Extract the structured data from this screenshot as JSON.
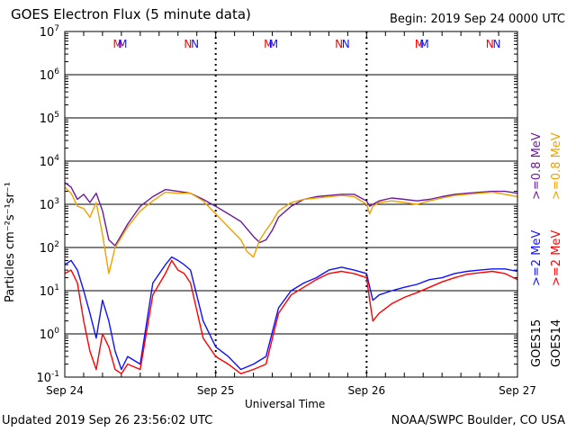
{
  "header": {
    "title": "GOES Electron Flux (5 minute data)",
    "begin": "Begin: 2019 Sep 24 0000 UTC"
  },
  "footer": {
    "updated": "Updated 2019 Sep 26 23:56:02 UTC",
    "credit": "NOAA/SWPC Boulder, CO USA"
  },
  "colors": {
    "goes15_2mev": "#1010ff",
    "goes14_2mev": "#ff0000",
    "goes15_08mev": "#6a1b9a",
    "goes14_08mev": "#f0a000",
    "threshold": "#000000"
  },
  "chart_data": {
    "type": "line",
    "ylabel": "Particles cm⁻²s⁻¹sr⁻¹",
    "xlabel": "Universal Time",
    "yscale": "log",
    "ylim": [
      0.1,
      10000000
    ],
    "y_ticks": [
      {
        "value": 0.1,
        "base": "10",
        "exp": "-1"
      },
      {
        "value": 1,
        "base": "10",
        "exp": "0"
      },
      {
        "value": 10,
        "base": "10",
        "exp": "1"
      },
      {
        "value": 100,
        "base": "10",
        "exp": "2"
      },
      {
        "value": 1000,
        "base": "10",
        "exp": "3"
      },
      {
        "value": 10000,
        "base": "10",
        "exp": "4"
      },
      {
        "value": 100000,
        "base": "10",
        "exp": "5"
      },
      {
        "value": 1000000,
        "base": "10",
        "exp": "6"
      },
      {
        "value": 10000000,
        "base": "10",
        "exp": "7"
      }
    ],
    "x_ticks": [
      "Sep 24",
      "Sep 25",
      "Sep 26",
      "Sep 27"
    ],
    "xlim_hours": [
      0,
      72
    ],
    "threshold": 1000,
    "markers": [
      {
        "label": "M",
        "color": "#ff0000",
        "hour": 8.4
      },
      {
        "label": "M",
        "color": "#1010ff",
        "hour": 9.2
      },
      {
        "label": "N",
        "color": "#ff0000",
        "hour": 19.6
      },
      {
        "label": "N",
        "color": "#1010ff",
        "hour": 20.7
      },
      {
        "label": "M",
        "color": "#ff0000",
        "hour": 32.4
      },
      {
        "label": "M",
        "color": "#1010ff",
        "hour": 33.2
      },
      {
        "label": "N",
        "color": "#ff0000",
        "hour": 43.6
      },
      {
        "label": "N",
        "color": "#1010ff",
        "hour": 44.7
      },
      {
        "label": "M",
        "color": "#ff0000",
        "hour": 56.4
      },
      {
        "label": "M",
        "color": "#1010ff",
        "hour": 57.2
      },
      {
        "label": "N",
        "color": "#ff0000",
        "hour": 67.6
      },
      {
        "label": "N",
        "color": "#1010ff",
        "hour": 68.7
      }
    ],
    "legend": [
      {
        "text": ">=0.8 MeV",
        "color": "#6a1b9a"
      },
      {
        "text": ">=0.8 MeV",
        "color": "#f0a000"
      },
      {
        "text": ">=2 MeV",
        "color": "#1010ff"
      },
      {
        "text": ">=2 MeV",
        "color": "#ff0000"
      },
      {
        "text": "GOES15",
        "color": "#000000"
      },
      {
        "text": "GOES14",
        "color": "#000000"
      }
    ],
    "series": [
      {
        "name": "GOES15 >=0.8 MeV",
        "color": "#6a1b9a",
        "x": [
          0,
          1,
          2,
          3,
          4,
          5,
          6,
          7,
          8,
          10,
          12,
          14,
          16,
          18,
          20,
          22,
          24,
          26,
          28,
          30,
          31,
          32,
          33,
          34,
          36,
          38,
          40,
          42,
          44,
          46,
          48,
          48.5,
          49,
          50,
          52,
          54,
          56,
          58,
          60,
          62,
          64,
          66,
          68,
          70,
          72
        ],
        "y": [
          3200,
          2500,
          1300,
          1700,
          1100,
          1800,
          700,
          150,
          110,
          350,
          900,
          1500,
          2200,
          2000,
          1800,
          1300,
          900,
          600,
          400,
          180,
          130,
          150,
          250,
          500,
          900,
          1300,
          1500,
          1600,
          1700,
          1700,
          1200,
          900,
          1000,
          1200,
          1400,
          1300,
          1200,
          1300,
          1500,
          1700,
          1800,
          1900,
          2000,
          2000,
          1800
        ]
      },
      {
        "name": "GOES14 >=0.8 MeV",
        "color": "#f0a000",
        "x": [
          0,
          1,
          2,
          3,
          4,
          5,
          6,
          7,
          8,
          10,
          12,
          14,
          16,
          18,
          20,
          22,
          24,
          26,
          28,
          29,
          30,
          31,
          32,
          33,
          34,
          36,
          38,
          40,
          42,
          44,
          46,
          48,
          48.5,
          49,
          50,
          52,
          54,
          56,
          58,
          60,
          62,
          64,
          66,
          68,
          70,
          72
        ],
        "y": [
          2500,
          1800,
          900,
          800,
          500,
          1100,
          200,
          25,
          100,
          300,
          700,
          1200,
          1900,
          1800,
          1800,
          1200,
          600,
          300,
          150,
          80,
          60,
          150,
          250,
          400,
          700,
          1100,
          1300,
          1400,
          1500,
          1600,
          1500,
          1000,
          600,
          900,
          1100,
          1200,
          1100,
          1000,
          1200,
          1400,
          1600,
          1700,
          1800,
          1900,
          1700,
          1500
        ]
      },
      {
        "name": "GOES15 >=2 MeV",
        "color": "#1010ff",
        "x": [
          0,
          1,
          2,
          3,
          4,
          5,
          6,
          7,
          8,
          9,
          10,
          12,
          14,
          16,
          17,
          18,
          19,
          20,
          22,
          24,
          26,
          28,
          30,
          32,
          34,
          36,
          38,
          40,
          42,
          44,
          46,
          48,
          48.5,
          49,
          50,
          52,
          54,
          56,
          58,
          60,
          62,
          64,
          66,
          68,
          70,
          72
        ],
        "y": [
          40,
          50,
          30,
          10,
          3,
          0.8,
          6,
          2,
          0.4,
          0.15,
          0.3,
          0.2,
          15,
          40,
          60,
          50,
          40,
          30,
          2,
          0.5,
          0.3,
          0.15,
          0.2,
          0.3,
          4,
          10,
          15,
          20,
          30,
          35,
          30,
          25,
          12,
          6,
          8,
          10,
          12,
          14,
          18,
          20,
          25,
          28,
          30,
          32,
          32,
          28
        ]
      },
      {
        "name": "GOES14 >=2 MeV",
        "color": "#ff0000",
        "x": [
          0,
          1,
          2,
          3,
          4,
          5,
          6,
          7,
          8,
          9,
          10,
          12,
          14,
          16,
          17,
          18,
          19,
          20,
          22,
          24,
          26,
          28,
          30,
          32,
          34,
          36,
          38,
          40,
          42,
          44,
          46,
          48,
          48.5,
          49,
          50,
          52,
          54,
          56,
          58,
          60,
          62,
          64,
          66,
          68,
          70,
          72
        ],
        "y": [
          25,
          30,
          15,
          2,
          0.4,
          0.15,
          1,
          0.5,
          0.15,
          0.12,
          0.2,
          0.15,
          8,
          25,
          50,
          30,
          25,
          15,
          0.8,
          0.3,
          0.2,
          0.12,
          0.15,
          0.2,
          3,
          8,
          12,
          18,
          25,
          28,
          25,
          20,
          6,
          2,
          3,
          5,
          7,
          9,
          12,
          16,
          20,
          24,
          26,
          28,
          25,
          18
        ]
      }
    ]
  }
}
